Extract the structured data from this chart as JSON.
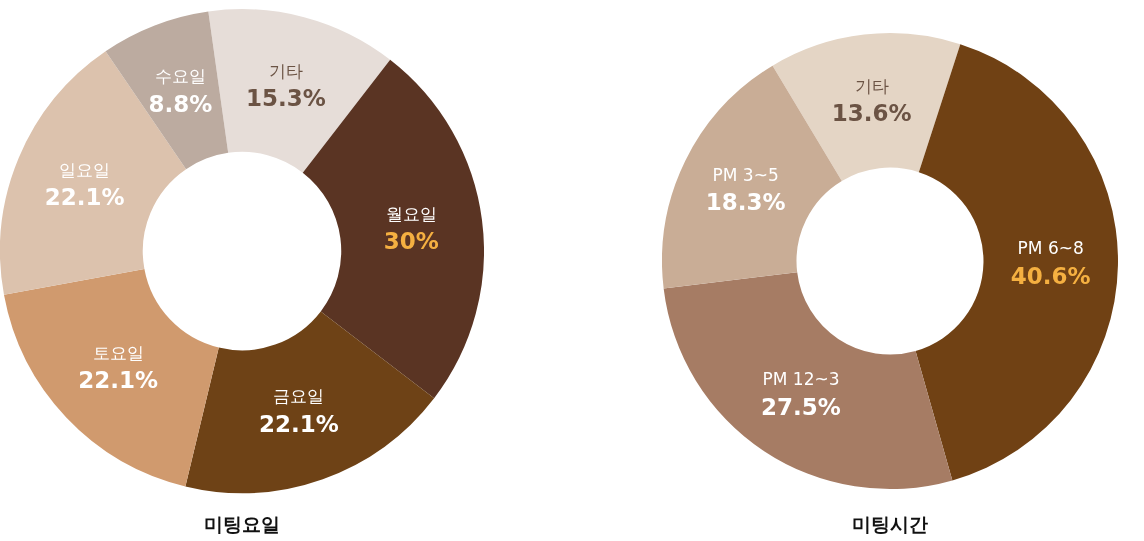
{
  "chart_data": [
    {
      "type": "donut",
      "title": "미팅요일",
      "categories": [
        "기타",
        "월요일",
        "금요일",
        "토요일",
        "일요일",
        "수요일"
      ],
      "values": [
        15.3,
        30,
        22.1,
        22.1,
        22.1,
        8.8
      ],
      "value_labels": [
        "15.3%",
        "30%",
        "22.1%",
        "22.1%",
        "22.1%",
        "8.8%"
      ],
      "colors": [
        "#e6ddd8",
        "#5a3423",
        "#6e4216",
        "#d09a6e",
        "#dcc2ad",
        "#bcaba0"
      ],
      "legend": false
    },
    {
      "type": "donut",
      "title": "미팅시간",
      "categories": [
        "기타",
        "PM 6~8",
        "PM 12~3",
        "PM 3~5"
      ],
      "values": [
        13.6,
        40.6,
        27.5,
        18.3
      ],
      "value_labels": [
        "13.6%",
        "40.6%",
        "27.5%",
        "18.3%"
      ],
      "colors": [
        "#e4d5c5",
        "#704114",
        "#a67c64",
        "#c9ad96"
      ],
      "legend": false
    }
  ]
}
